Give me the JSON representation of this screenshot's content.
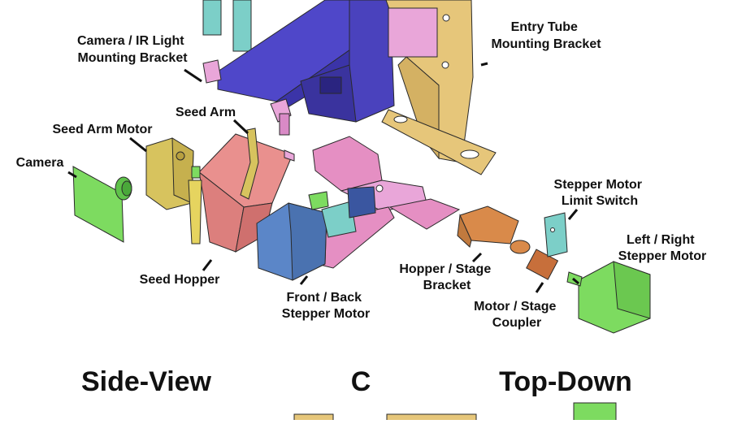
{
  "labels": {
    "camera_ir_bracket": [
      "Camera / IR Light",
      "Mounting Bracket"
    ],
    "entry_tube_bracket": [
      "Entry Tube",
      "Mounting Bracket"
    ],
    "seed_arm": "Seed Arm",
    "seed_arm_motor": "Seed Arm Motor",
    "camera": "Camera",
    "seed_hopper": "Seed Hopper",
    "front_back_motor": [
      "Front / Back",
      "Stepper Motor"
    ],
    "limit_switch": [
      "Stepper Motor",
      "Limit Switch"
    ],
    "left_right_motor": [
      "Left / Right",
      "Stepper Motor"
    ],
    "hopper_stage_bracket": [
      "Hopper / Stage",
      "Bracket"
    ],
    "motor_stage_coupler": [
      "Motor / Stage",
      "Coupler"
    ]
  },
  "section_titles": {
    "side_view": "Side-View",
    "panel_letter": "C",
    "top_down": "Top-Down"
  },
  "colors": {
    "blue_bracket": "#4f47c9",
    "tan_bracket": "#e6c67a",
    "pink": "#e58fc3",
    "magenta_light": "#e9a6d9",
    "teal": "#7ccfc8",
    "green": "#7ddb60",
    "salmon": "#e9908e",
    "steel_blue": "#5b86c8",
    "orange": "#d98a4a",
    "olive": "#d7c35e",
    "outline": "#2a2a2a"
  }
}
